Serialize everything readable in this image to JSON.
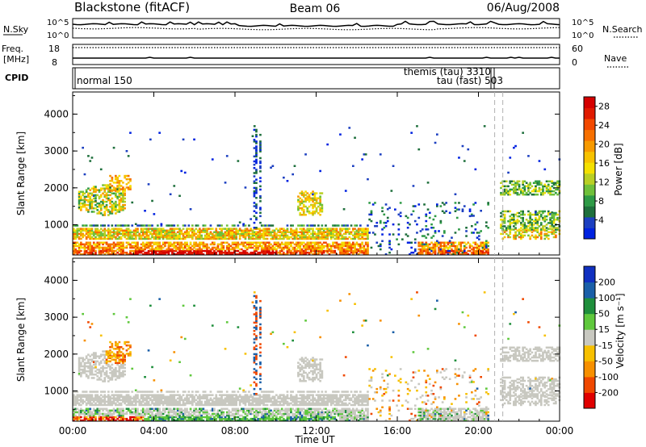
{
  "header": {
    "station": "Blackstone (fitACF)",
    "beam": "Beam 06",
    "date": "06/Aug/2008"
  },
  "panels": {
    "nsky": {
      "left_label": "N.Sky",
      "right_label": "N.Search",
      "left_ticks": [
        "10^5",
        "10^0"
      ],
      "right_ticks": [
        "10^5",
        "10^0"
      ]
    },
    "freq": {
      "left_label_1": "Freq.",
      "left_label_2": "[MHz]",
      "right_label": "Nave",
      "left_ticks": [
        "18",
        "8"
      ],
      "right_ticks": [
        "60",
        "0"
      ]
    },
    "cpid": {
      "left_label": "CPID",
      "modes": [
        "normal 150",
        "themis (tau) 3310",
        "tau (fast) 503"
      ]
    }
  },
  "chart_data": [
    {
      "type": "heatmap",
      "name": "power",
      "ylabel": "Slant Range [km]",
      "xlabel": "",
      "x_ticks": [
        "00:00",
        "04:00",
        "08:00",
        "12:00",
        "16:00",
        "20:00",
        "00:00"
      ],
      "y_ticks": [
        1000,
        2000,
        3000,
        4000
      ],
      "ylim": [
        180,
        4600
      ],
      "xlim_hours": [
        0,
        24
      ],
      "colorbar": {
        "label": "Power [dB]",
        "ticks": [
          4,
          8,
          12,
          16,
          20,
          24,
          28
        ],
        "range": [
          0,
          30
        ],
        "colors": [
          "#0022e0",
          "#1c3fc0",
          "#1e6f3c",
          "#2e9a46",
          "#6fc03a",
          "#b9cf24",
          "#f4e000",
          "#f7c200",
          "#f79a00",
          "#f77000",
          "#f24800",
          "#e01a00",
          "#d40000"
        ]
      }
    },
    {
      "type": "heatmap",
      "name": "velocity",
      "ylabel": "Slant Range [km]",
      "xlabel": "Time UT",
      "x_ticks": [
        "00:00",
        "04:00",
        "08:00",
        "12:00",
        "16:00",
        "20:00",
        "00:00"
      ],
      "y_ticks": [
        1000,
        2000,
        3000,
        4000
      ],
      "ylim": [
        180,
        4600
      ],
      "xlim_hours": [
        0,
        24
      ],
      "colorbar": {
        "label": "Velocity [m s⁻¹]",
        "ticks": [
          -200,
          -100,
          -50,
          -15,
          15,
          50,
          100,
          200
        ],
        "colors": [
          "#e00000",
          "#f04800",
          "#f79000",
          "#f7c000",
          "#c8c8c0",
          "#5fc83c",
          "#1f8f3c",
          "#1a5fa8",
          "#1030c0"
        ]
      },
      "ground_scatter_color": "#c8c8c0"
    }
  ]
}
